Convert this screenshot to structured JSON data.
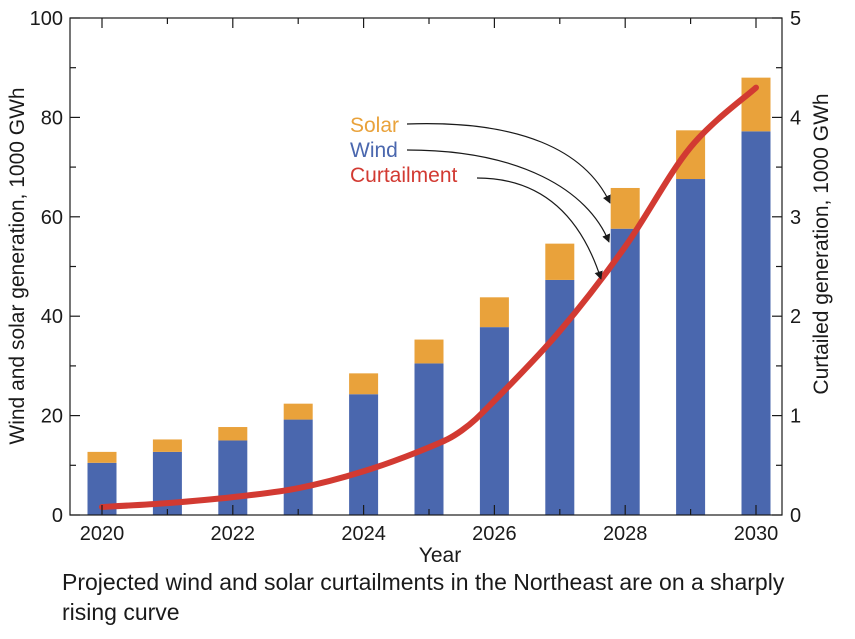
{
  "chart_data": {
    "type": "bar",
    "subtype": "stacked-bar-with-line",
    "x": [
      2020,
      2021,
      2022,
      2023,
      2024,
      2025,
      2026,
      2027,
      2028,
      2029,
      2030
    ],
    "xticks": [
      "2020",
      "2022",
      "2024",
      "2026",
      "2028",
      "2030"
    ],
    "xlabel": "Year",
    "ylabel": "Wind and solar generation, 1000 GWh",
    "y2label": "Curtailed generation, 1000 GWh",
    "ylim": [
      0,
      100
    ],
    "y2lim": [
      0,
      5
    ],
    "yticks": [
      "0",
      "20",
      "40",
      "60",
      "80",
      "100"
    ],
    "y2ticks": [
      "0",
      "1",
      "2",
      "3",
      "4",
      "5"
    ],
    "series": [
      {
        "name": "Wind",
        "color": "#4a67ae",
        "axis": "left",
        "kind": "bar",
        "values": [
          10.5,
          12.7,
          15.0,
          19.2,
          24.3,
          30.5,
          37.8,
          47.3,
          57.6,
          67.6,
          77.2
        ]
      },
      {
        "name": "Solar",
        "color": "#e9a23b",
        "axis": "left",
        "kind": "bar-stacked",
        "values": [
          2.2,
          2.5,
          2.7,
          3.2,
          4.2,
          4.8,
          6.0,
          7.3,
          8.2,
          9.8,
          10.8
        ]
      },
      {
        "name": "Curtailment",
        "color": "#d23a32",
        "axis": "right",
        "kind": "line",
        "x": [
          2020,
          2021,
          2022,
          2023,
          2024,
          2025,
          2025.5,
          2026,
          2027,
          2028,
          2029,
          2030
        ],
        "values": [
          0.08,
          0.12,
          0.18,
          0.27,
          0.44,
          0.68,
          0.85,
          1.15,
          1.85,
          2.7,
          3.7,
          4.3
        ]
      }
    ],
    "legend": {
      "placement": "annotation, upper-middle with arrows to 2028 bars",
      "entries": [
        "Solar",
        "Wind",
        "Curtailment"
      ]
    },
    "grid": false
  },
  "caption": "Projected wind and solar curtailments in the Northeast are on a sharply rising curve"
}
